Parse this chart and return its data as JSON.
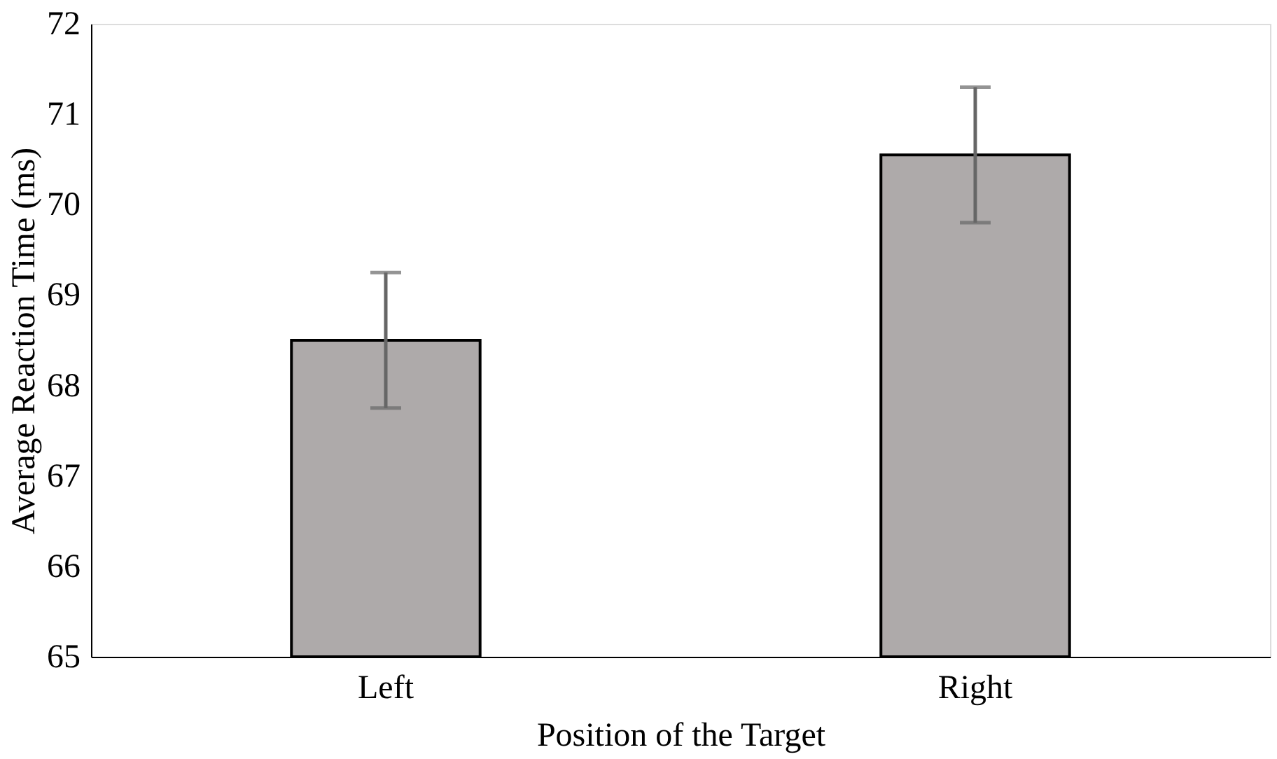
{
  "chart_data": {
    "type": "bar",
    "xlabel": "Position of the Target",
    "ylabel": "Average Reaction Time (ms)",
    "categories": [
      "Left",
      "Right"
    ],
    "series": [
      {
        "color": "#aeaaaa",
        "values": [
          68.5,
          70.55
        ],
        "errors": [
          0.75,
          [
            69.8,
            71.3
          ]
        ]
      }
    ],
    "ylim": [
      65,
      72
    ],
    "yticks": [
      65,
      66,
      67,
      68,
      69,
      70,
      71,
      72
    ],
    "grid": false
  }
}
